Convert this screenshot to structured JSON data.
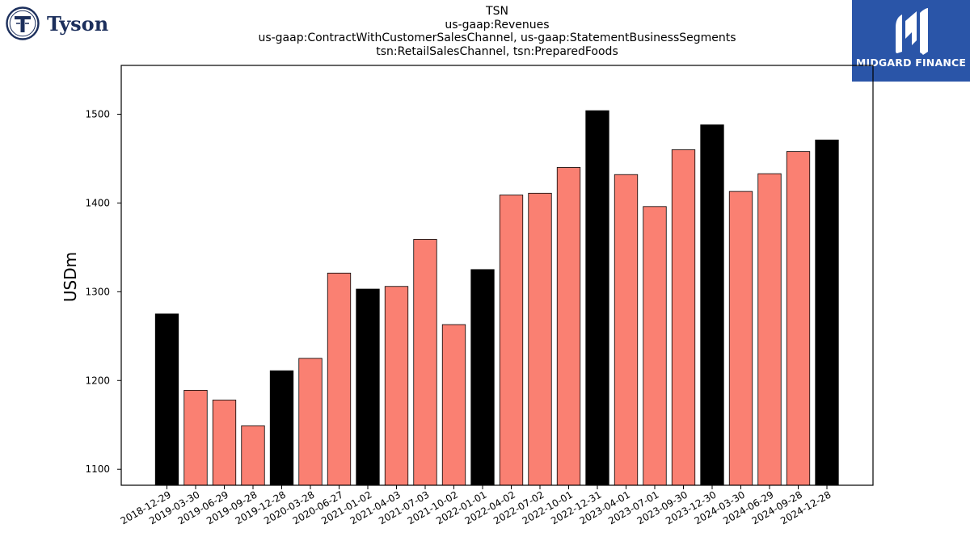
{
  "header": {
    "title_lines": [
      "TSN",
      "us-gaap:Revenues",
      "us-gaap:ContractWithCustomerSalesChannel, us-gaap:StatementBusinessSegments",
      "tsn:RetailSalesChannel, tsn:PreparedFoods"
    ]
  },
  "logos": {
    "left_brand": "Tyson",
    "right_brand": "MIDGARD FINANCE"
  },
  "colors": {
    "highlight": "#000000",
    "normal": "#fa8072",
    "right_logo_bg": "#2a55a8",
    "left_logo": "#1c2f5c"
  },
  "chart_data": {
    "type": "bar",
    "ylabel": "USDm",
    "xlabel": "",
    "ylim": [
      1082,
      1555
    ],
    "yticks": [
      1100,
      1200,
      1300,
      1400,
      1500
    ],
    "categories": [
      "2018-12-29",
      "2019-03-30",
      "2019-06-29",
      "2019-09-28",
      "2019-12-28",
      "2020-03-28",
      "2020-06-27",
      "2021-01-02",
      "2021-04-03",
      "2021-07-03",
      "2021-10-02",
      "2022-01-01",
      "2022-04-02",
      "2022-07-02",
      "2022-10-01",
      "2022-12-31",
      "2023-04-01",
      "2023-07-01",
      "2023-09-30",
      "2023-12-30",
      "2024-03-30",
      "2024-06-29",
      "2024-09-28",
      "2024-12-28"
    ],
    "values": [
      1275,
      1189,
      1178,
      1149,
      1211,
      1225,
      1321,
      1303,
      1306,
      1359,
      1263,
      1325,
      1409,
      1411,
      1440,
      1504,
      1432,
      1396,
      1460,
      1488,
      1413,
      1433,
      1458,
      1471
    ],
    "highlighted": [
      true,
      false,
      false,
      false,
      true,
      false,
      false,
      true,
      false,
      false,
      false,
      true,
      false,
      false,
      false,
      true,
      false,
      false,
      false,
      true,
      false,
      false,
      false,
      true
    ],
    "grid": false,
    "legend": "none"
  }
}
